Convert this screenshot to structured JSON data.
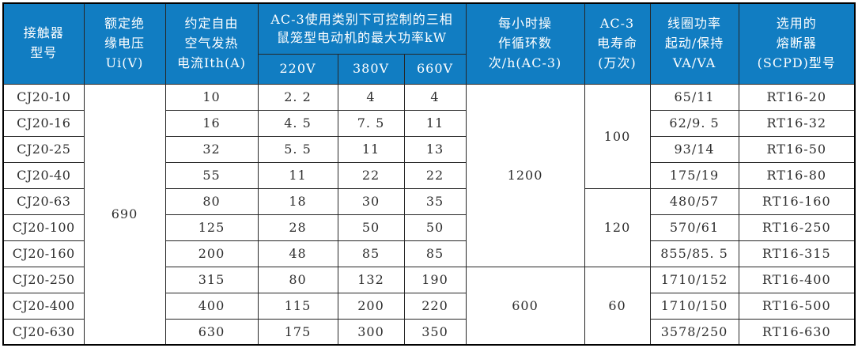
{
  "colors": {
    "header_bg": "#117dc2",
    "header_text": "#ffffff",
    "border": "#262626",
    "body_text": "#2e2e2e"
  },
  "table": {
    "header": {
      "model": "接触器\n型号",
      "ui": "额定绝\n缘电压\nUi(V)",
      "ith": "约定自由\n空气发热\n电流Ith(A)",
      "kw_group": "AC-3使用类别下可控制的三相\n鼠笼型电动机的最大功率kW",
      "kw_cols": [
        "220V",
        "380V",
        "660V"
      ],
      "cycles": "每小时操\n作循环数\n次/h(AC-3)",
      "life": "AC-3\n电寿命\n(万次)",
      "coil": "线圈功率\n起动/保持\nVA/VA",
      "fuse": "选用的\n熔断器\n(SCPD)型号"
    },
    "rows": [
      {
        "model": "CJ20-10",
        "ith": "10",
        "kw220": "2. 2",
        "kw380": "4",
        "kw660": "4",
        "coil": "65/11",
        "fuse": "RT16-20"
      },
      {
        "model": "CJ20-16",
        "ith": "16",
        "kw220": "4. 5",
        "kw380": "7. 5",
        "kw660": "11",
        "coil": "62/9. 5",
        "fuse": "RT16-32"
      },
      {
        "model": "CJ20-25",
        "ith": "32",
        "kw220": "5. 5",
        "kw380": "11",
        "kw660": "13",
        "coil": "93/14",
        "fuse": "RT16-50"
      },
      {
        "model": "CJ20-40",
        "ith": "55",
        "kw220": "11",
        "kw380": "22",
        "kw660": "22",
        "coil": "175/19",
        "fuse": "RT16-80"
      },
      {
        "model": "CJ20-63",
        "ith": "80",
        "kw220": "18",
        "kw380": "30",
        "kw660": "35",
        "coil": "480/57",
        "fuse": "RT16-160"
      },
      {
        "model": "CJ20-100",
        "ith": "125",
        "kw220": "28",
        "kw380": "50",
        "kw660": "50",
        "coil": "570/61",
        "fuse": "RT16-250"
      },
      {
        "model": "CJ20-160",
        "ith": "200",
        "kw220": "48",
        "kw380": "85",
        "kw660": "85",
        "coil": "855/85. 5",
        "fuse": "RT16-315"
      },
      {
        "model": "CJ20-250",
        "ith": "315",
        "kw220": "80",
        "kw380": "132",
        "kw660": "190",
        "coil": "1710/152",
        "fuse": "RT16-400"
      },
      {
        "model": "CJ20-400",
        "ith": "400",
        "kw220": "115",
        "kw380": "200",
        "kw660": "220",
        "coil": "1710/150",
        "fuse": "RT16-500"
      },
      {
        "model": "CJ20-630",
        "ith": "630",
        "kw220": "175",
        "kw380": "300",
        "kw660": "350",
        "coil": "3578/250",
        "fuse": "RT16-630"
      }
    ],
    "merged": {
      "ui": [
        {
          "start": 0,
          "span": 10,
          "value": "690"
        }
      ],
      "cycles": [
        {
          "start": 0,
          "span": 7,
          "value": "1200"
        },
        {
          "start": 7,
          "span": 3,
          "value": "600"
        }
      ],
      "life": [
        {
          "start": 0,
          "span": 4,
          "value": "100"
        },
        {
          "start": 4,
          "span": 3,
          "value": "120"
        },
        {
          "start": 7,
          "span": 3,
          "value": "60"
        }
      ]
    }
  }
}
